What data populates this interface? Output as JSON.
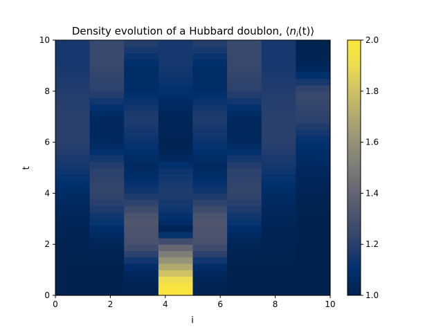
{
  "chart_data": {
    "type": "heatmap",
    "title": "Density evolution of a Hubbard doublon, ⟨n_i(t)⟩",
    "title_plain": "Density evolution of a Hubbard doublon, ⟨",
    "title_var": "n",
    "title_sub": "i",
    "title_var2": "(t)",
    "title_close": "⟩",
    "xlabel": "i",
    "ylabel": "t",
    "xlim": [
      0,
      10
    ],
    "ylim": [
      0,
      10
    ],
    "xticks": [
      0,
      2,
      4,
      6,
      8,
      10
    ],
    "yticks": [
      0,
      2,
      4,
      6,
      8,
      10
    ],
    "colormap": "cividis",
    "colorbar": {
      "range": [
        1.0,
        2.0
      ],
      "ticks": [
        1.0,
        1.2,
        1.4,
        1.6,
        1.8,
        2.0
      ]
    },
    "x_edges": [
      0,
      1.25,
      2.5,
      3.75,
      5.0,
      6.25,
      7.5,
      8.75,
      10.0
    ],
    "row_height": 0.25,
    "columns": [
      {
        "site": 0,
        "times": [
          0,
          1,
          2,
          3,
          4,
          5,
          6,
          7,
          8,
          9,
          10
        ],
        "values": [
          1.0,
          1.0,
          1.01,
          1.03,
          1.07,
          1.14,
          1.2,
          1.2,
          1.18,
          1.15,
          1.15
        ]
      },
      {
        "site": 1,
        "times": [
          0,
          1,
          2,
          3,
          4,
          5,
          6,
          7,
          8,
          9,
          10
        ],
        "values": [
          1.0,
          1.0,
          1.02,
          1.13,
          1.24,
          1.2,
          1.05,
          1.05,
          1.2,
          1.25,
          1.25
        ]
      },
      {
        "site": 2,
        "times": [
          0,
          1,
          2,
          3,
          4,
          5,
          6,
          7,
          8,
          9,
          10
        ],
        "values": [
          1.0,
          1.05,
          1.3,
          1.33,
          1.15,
          1.05,
          1.12,
          1.18,
          1.08,
          1.08,
          1.2
        ]
      },
      {
        "site": 3,
        "times": [
          0,
          0.5,
          1,
          1.5,
          2,
          2.3,
          2.6,
          3,
          4,
          5,
          5.5,
          6,
          7,
          8,
          9,
          10
        ],
        "values": [
          1.98,
          1.96,
          1.75,
          1.56,
          1.36,
          1.15,
          1.02,
          1.1,
          1.18,
          1.12,
          1.03,
          1.02,
          1.03,
          1.1,
          1.15,
          1.15
        ]
      },
      {
        "site": 4,
        "times": [
          0,
          1,
          2,
          3,
          4,
          5,
          6,
          7,
          8,
          9,
          10
        ],
        "values": [
          1.0,
          1.05,
          1.3,
          1.33,
          1.15,
          1.05,
          1.12,
          1.18,
          1.08,
          1.08,
          1.2
        ]
      },
      {
        "site": 5,
        "times": [
          0,
          1,
          2,
          3,
          4,
          5,
          6,
          7,
          8,
          9,
          10
        ],
        "values": [
          1.0,
          1.0,
          1.02,
          1.13,
          1.24,
          1.2,
          1.05,
          1.05,
          1.2,
          1.25,
          1.25
        ]
      },
      {
        "site": 6,
        "times": [
          0,
          1,
          2,
          3,
          4,
          5,
          6,
          7,
          8,
          9,
          10
        ],
        "values": [
          1.0,
          1.0,
          1.01,
          1.03,
          1.07,
          1.14,
          1.2,
          1.2,
          1.18,
          1.15,
          1.15
        ]
      },
      {
        "site": 7,
        "times": [
          0,
          1,
          2,
          3,
          4,
          5,
          6,
          7,
          8,
          8.5,
          9,
          10
        ],
        "values": [
          1.0,
          1.0,
          1.0,
          1.0,
          1.02,
          1.05,
          1.1,
          1.22,
          1.25,
          1.12,
          1.03,
          1.0
        ]
      }
    ]
  }
}
